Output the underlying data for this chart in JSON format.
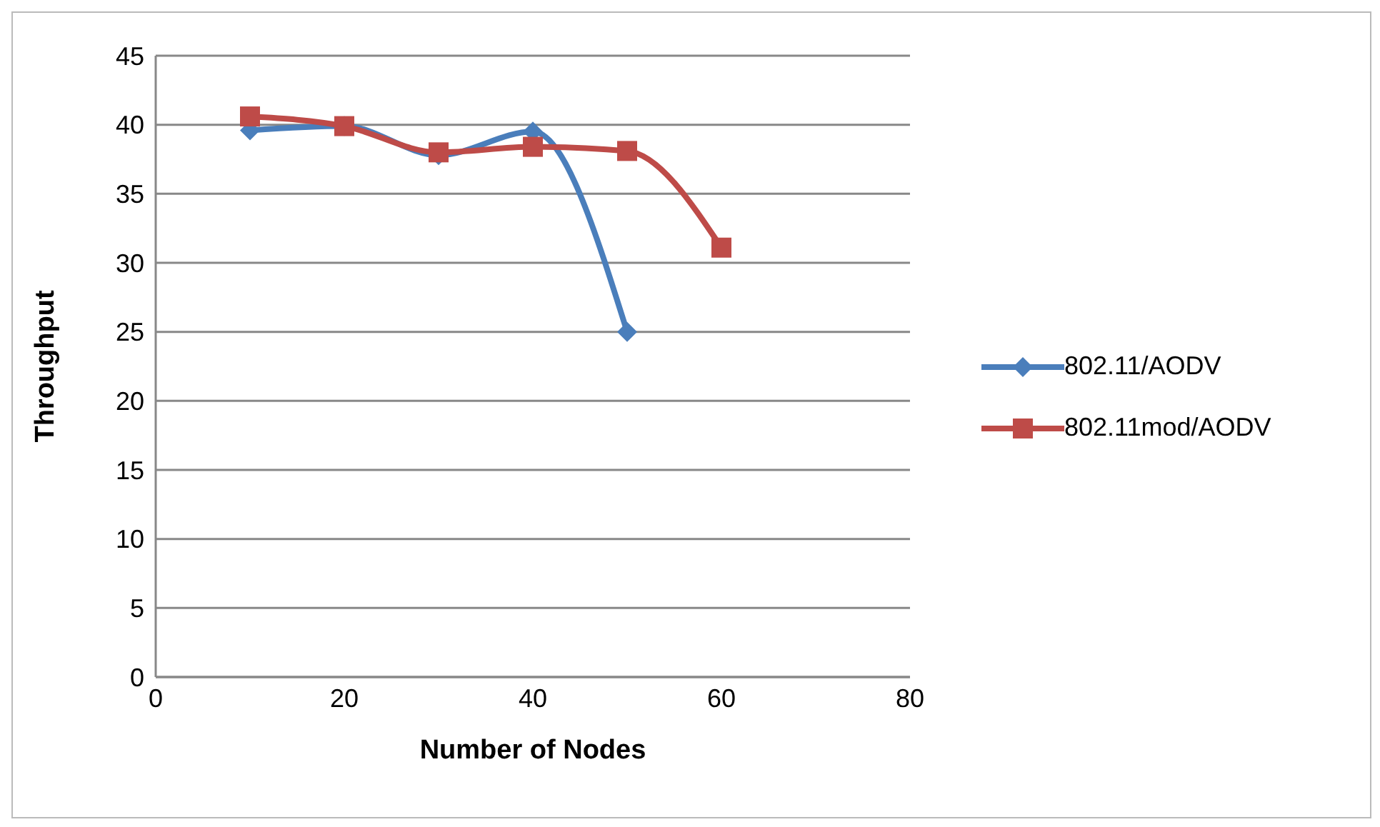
{
  "chart_data": {
    "type": "line",
    "xlabel": "Number of Nodes",
    "ylabel": "Throughput",
    "x": [
      10,
      20,
      30,
      40,
      50,
      60
    ],
    "series": [
      {
        "name": "802.11/AODV",
        "color": "#4a7ebb",
        "marker": "diamond",
        "values": [
          39.6,
          39.9,
          37.8,
          39.5,
          25,
          null
        ]
      },
      {
        "name": "802.11mod/AODV",
        "color": "#be4b48",
        "marker": "square",
        "values": [
          40.6,
          39.9,
          38,
          38.4,
          38.1,
          31.1
        ]
      }
    ],
    "xlim": [
      0,
      80
    ],
    "xticks": [
      0,
      20,
      40,
      60,
      80
    ],
    "ylim": [
      0,
      45
    ],
    "yticks": [
      0,
      5,
      10,
      15,
      20,
      25,
      30,
      35,
      40,
      45
    ],
    "grid": "y",
    "legend": "right"
  }
}
